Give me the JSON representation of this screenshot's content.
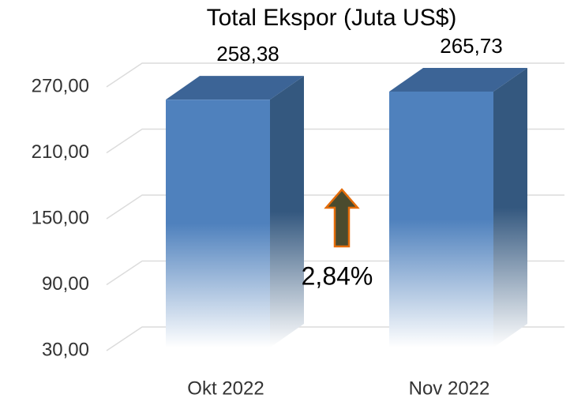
{
  "chart_data": {
    "type": "bar3d",
    "title": "Total Ekspor (Juta US$)",
    "categories": [
      "Okt 2022",
      "Nov 2022"
    ],
    "values": [
      258.38,
      265.73
    ],
    "value_labels": [
      "258,38",
      "265,73"
    ],
    "color": "#4f81bd",
    "ylim": [
      30,
      270
    ],
    "yticks": [
      {
        "value": 30,
        "label": "30,00"
      },
      {
        "value": 90,
        "label": "90,00"
      },
      {
        "value": 150,
        "label": "150,00"
      },
      {
        "value": 210,
        "label": "210,00"
      },
      {
        "value": 270,
        "label": "270,00"
      }
    ],
    "grid": true,
    "annotation": "2,84%"
  }
}
